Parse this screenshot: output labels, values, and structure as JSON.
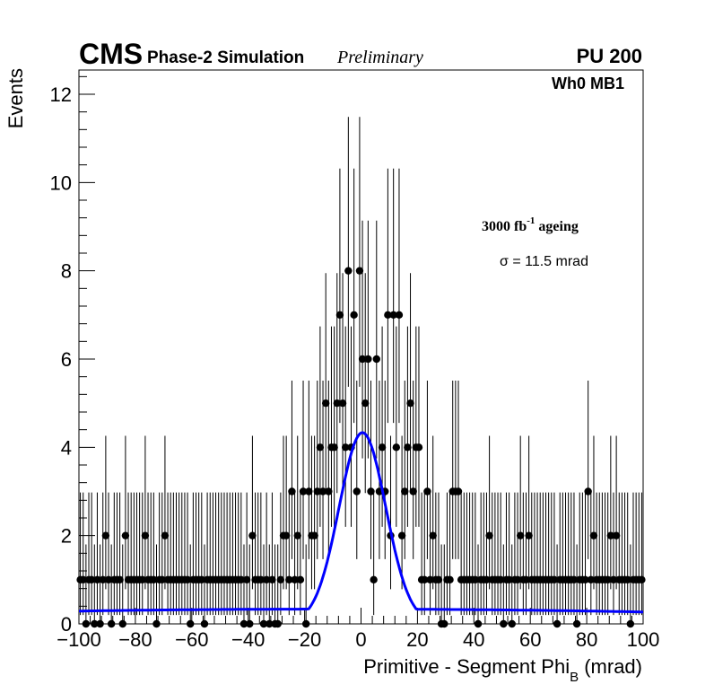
{
  "header": {
    "experiment": "CMS",
    "subtitle": "Phase-2 Simulation",
    "status": "Preliminary",
    "pileup": "PU 200"
  },
  "annotations": {
    "region": "Wh0 MB1",
    "ageing_base": "3000 fb",
    "ageing_exp": "-1",
    "ageing_suffix": " ageing",
    "sigma": "σ = 11.5 mrad"
  },
  "colors": {
    "points": "#000000",
    "fit": "#0000ff",
    "axes": "#000000"
  },
  "chart_data": {
    "type": "scatter",
    "title": "",
    "xlabel_main": "Primitive - Segment Phi",
    "xlabel_sub": "B",
    "xlabel_unit": " (mrad)",
    "ylabel": "Events",
    "xlim": [
      -100,
      100
    ],
    "ylim": [
      0,
      12.6
    ],
    "x_ticks": [
      -100,
      -80,
      -60,
      -40,
      -20,
      0,
      20,
      40,
      60,
      80,
      100
    ],
    "x_tick_labels": [
      "−100",
      "−80",
      "−60",
      "−40",
      "−20",
      "0",
      "20",
      "40",
      "60",
      "80",
      "100"
    ],
    "y_ticks": [
      0,
      2,
      4,
      6,
      8,
      10,
      12
    ],
    "y_tick_labels": [
      "0",
      "2",
      "4",
      "6",
      "8",
      "10",
      "12"
    ],
    "series": [
      {
        "kind": "histogram-points",
        "bin_width": 1,
        "x_start": -99.5,
        "values": [
          1,
          1,
          0,
          1,
          1,
          0,
          1,
          0,
          1,
          2,
          1,
          0,
          1,
          1,
          1,
          0,
          2,
          1,
          1,
          1,
          1,
          1,
          1,
          2,
          1,
          1,
          1,
          0,
          1,
          1,
          2,
          1,
          1,
          1,
          1,
          1,
          1,
          1,
          1,
          0,
          1,
          1,
          1,
          1,
          0,
          1,
          1,
          1,
          1,
          1,
          1,
          1,
          1,
          1,
          1,
          1,
          1,
          1,
          0,
          1,
          0,
          2,
          1,
          1,
          1,
          0,
          1,
          0,
          1,
          0,
          0,
          1,
          2,
          2,
          1,
          3,
          1,
          2,
          1,
          3,
          0,
          3,
          2,
          2,
          3,
          4,
          3,
          5,
          3,
          4,
          4,
          5,
          7,
          5,
          4,
          8,
          4,
          7,
          3,
          8,
          6,
          5,
          6,
          3,
          1,
          6,
          3,
          4,
          3,
          7,
          2,
          7,
          4,
          7,
          2,
          3,
          4,
          5,
          3,
          4,
          4,
          1,
          1,
          3,
          1,
          2,
          1,
          1,
          0,
          0,
          1,
          1,
          3,
          3,
          3,
          1,
          1,
          1,
          1,
          1,
          1,
          0,
          1,
          1,
          1,
          2,
          1,
          1,
          1,
          1,
          0,
          1,
          1,
          0,
          1,
          1,
          2,
          1,
          1,
          2,
          1,
          1,
          1,
          1,
          1,
          1,
          1,
          1,
          1,
          0,
          1,
          1,
          1,
          1,
          1,
          1,
          0,
          1,
          1,
          1,
          3,
          1,
          2,
          1,
          1,
          1,
          1,
          1,
          2,
          1,
          2,
          1,
          1,
          1,
          1,
          0,
          1,
          1,
          1,
          1
        ]
      },
      {
        "kind": "gaussian-fit",
        "name": "",
        "amplitude": 4.3,
        "mean": 0.5,
        "sigma_mrad": 11.5,
        "baseline": [
          0.29,
          0.39,
          0.27
        ]
      }
    ]
  }
}
